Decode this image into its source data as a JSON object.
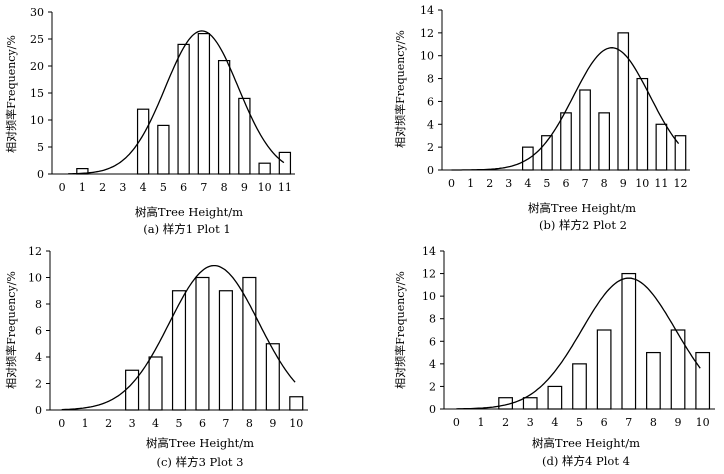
{
  "chart_data": [
    {
      "type": "bar",
      "overlay": "normal-curve",
      "caption": "(a) 样方1 Plot 1",
      "xlabel": "树高Tree Height/m",
      "ylabel": "相对频率Frequency/%",
      "categories": [
        "0",
        "1",
        "2",
        "3",
        "4",
        "5",
        "6",
        "7",
        "8",
        "9",
        "10",
        "11"
      ],
      "values": [
        0,
        1,
        0,
        0,
        12,
        9,
        24,
        26,
        21,
        14,
        2,
        4
      ],
      "ylim": [
        0,
        30
      ],
      "yticks": [
        "0",
        "5",
        "10",
        "15",
        "20",
        "25",
        "30"
      ],
      "curve": {
        "peak": 26.5,
        "mean": 6.9,
        "sd": 1.8,
        "x_start": 0.3,
        "x_end": 10.95
      }
    },
    {
      "type": "bar",
      "overlay": "normal-curve",
      "caption": "(b) 样方2 Plot 2",
      "xlabel": "树高Tree Height/m",
      "ylabel": "相对频率Frequency/%",
      "categories": [
        "0",
        "1",
        "2",
        "3",
        "4",
        "5",
        "6",
        "7",
        "8",
        "9",
        "10",
        "11",
        "12"
      ],
      "values": [
        0,
        0,
        0,
        0,
        2,
        3,
        5,
        7,
        5,
        12,
        8,
        4,
        3
      ],
      "ylim": [
        0,
        14
      ],
      "yticks": [
        "0",
        "2",
        "4",
        "6",
        "8",
        "10",
        "12",
        "14"
      ],
      "curve": {
        "peak": 10.7,
        "mean": 8.4,
        "sd": 2.0,
        "x_start": 0.0,
        "x_end": 11.9
      }
    },
    {
      "type": "bar",
      "overlay": "normal-curve",
      "caption": "(c) 样方3 Plot 3",
      "xlabel": "树高Tree Height/m",
      "ylabel": "相对频率Frequency/%",
      "categories": [
        "0",
        "1",
        "2",
        "3",
        "4",
        "5",
        "6",
        "7",
        "8",
        "9",
        "10"
      ],
      "values": [
        0,
        0,
        0,
        3,
        4,
        9,
        10,
        9,
        10,
        5,
        1
      ],
      "ylim": [
        0,
        12
      ],
      "yticks": [
        "0",
        "2",
        "4",
        "6",
        "8",
        "10",
        "12"
      ],
      "curve": {
        "peak": 10.9,
        "mean": 6.5,
        "sd": 1.9,
        "x_start": 0.0,
        "x_end": 9.95
      }
    },
    {
      "type": "bar",
      "overlay": "normal-curve",
      "caption": "(d) 样方4 Plot 4",
      "xlabel": "树高Tree Height/m",
      "ylabel": "相对频率Frequency/%",
      "categories": [
        "0",
        "1",
        "2",
        "3",
        "4",
        "5",
        "6",
        "7",
        "8",
        "9",
        "10"
      ],
      "values": [
        0,
        0,
        1,
        1,
        2,
        4,
        7,
        12,
        5,
        7,
        5
      ],
      "ylim": [
        0,
        14
      ],
      "yticks": [
        "0",
        "2",
        "4",
        "6",
        "8",
        "10",
        "12",
        "14"
      ],
      "curve": {
        "peak": 11.6,
        "mean": 7.0,
        "sd": 1.9,
        "x_start": 0.0,
        "x_end": 9.9
      }
    }
  ]
}
